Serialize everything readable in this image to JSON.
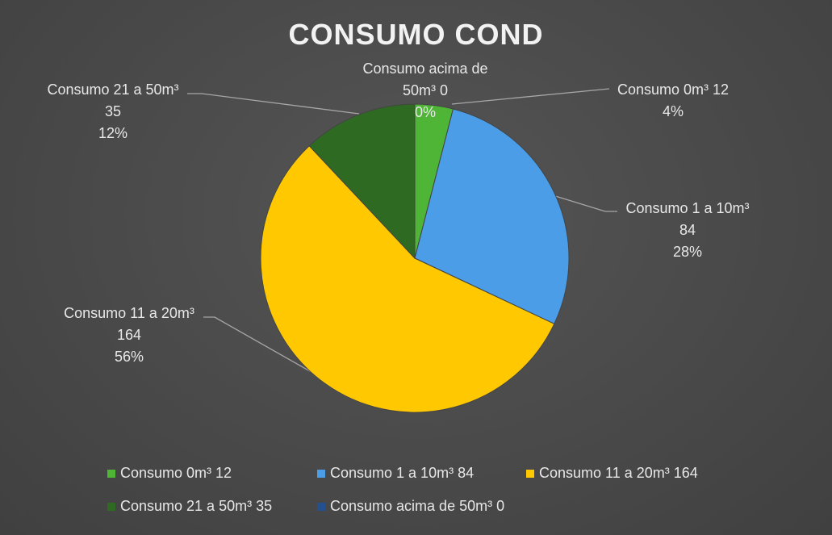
{
  "chart_data": {
    "type": "pie",
    "title": "CONSUMO COND",
    "categories": [
      "Consumo 0m³ 12",
      "Consumo 1 a 10m³ 84",
      "Consumo 11 a 20m³ 164",
      "Consumo 21 a 50m³ 35",
      "Consumo acima de 50m³ 0"
    ],
    "values": [
      4,
      28,
      56,
      12,
      0
    ],
    "value_labels": [
      "4%",
      "28%",
      "56%",
      "12%",
      "0%"
    ],
    "colors": [
      "#4fb536",
      "#4a9de6",
      "#ffc800",
      "#2f6a22",
      "#24508f"
    ],
    "legend": "bottom"
  }
}
